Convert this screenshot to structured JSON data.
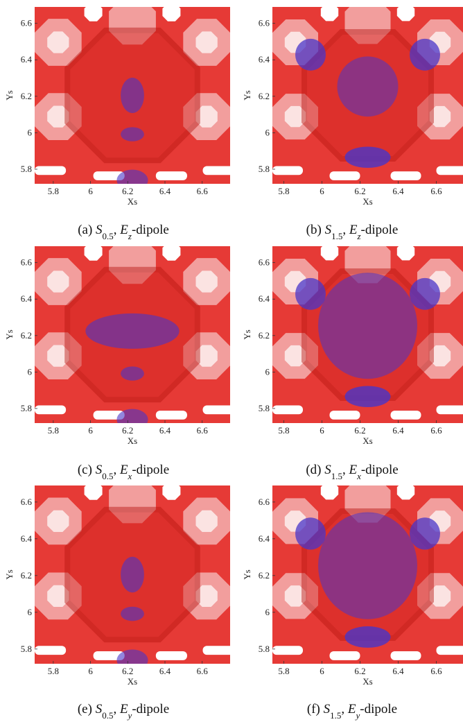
{
  "panels": [
    {
      "caption": [
        {
          "text": "(a) "
        },
        {
          "text": "S",
          "style": "italic"
        },
        {
          "text": "0.5",
          "style": "sub"
        },
        {
          "text": ", "
        },
        {
          "text": "E",
          "style": "italic"
        },
        {
          "text": "z",
          "style": "italic-sub"
        },
        {
          "text": "-dipole"
        }
      ],
      "xlabel": "Xs",
      "ylabel": "Ys",
      "xlim": [
        5.7,
        6.75
      ],
      "ylim": [
        5.72,
        6.69
      ],
      "xticks": [
        5.8,
        6,
        6.2,
        6.4,
        6.6
      ],
      "yticks": [
        5.8,
        6,
        6.2,
        6.4,
        6.6
      ]
    },
    {
      "caption": [
        {
          "text": "(b) "
        },
        {
          "text": "S",
          "style": "italic"
        },
        {
          "text": "1.5",
          "style": "sub"
        },
        {
          "text": ", "
        },
        {
          "text": "E",
          "style": "italic"
        },
        {
          "text": "z",
          "style": "italic-sub"
        },
        {
          "text": "-dipole"
        }
      ],
      "xlabel": "Xs",
      "ylabel": "Ys",
      "xlim": [
        5.74,
        6.74
      ],
      "ylim": [
        5.72,
        6.69
      ],
      "xticks": [
        5.8,
        6,
        6.2,
        6.4,
        6.6
      ],
      "yticks": [
        5.8,
        6,
        6.2,
        6.4,
        6.6
      ]
    },
    {
      "caption": [
        {
          "text": "(c) "
        },
        {
          "text": "S",
          "style": "italic"
        },
        {
          "text": "0.5",
          "style": "sub"
        },
        {
          "text": ", "
        },
        {
          "text": "E",
          "style": "italic"
        },
        {
          "text": "x",
          "style": "italic-sub"
        },
        {
          "text": "-dipole"
        }
      ],
      "xlabel": "Xs",
      "ylabel": "Ys",
      "xlim": [
        5.7,
        6.75
      ],
      "ylim": [
        5.72,
        6.69
      ],
      "xticks": [
        5.8,
        6,
        6.2,
        6.4,
        6.6
      ],
      "yticks": [
        5.8,
        6,
        6.2,
        6.4,
        6.6
      ]
    },
    {
      "caption": [
        {
          "text": "(d) "
        },
        {
          "text": "S",
          "style": "italic"
        },
        {
          "text": "1.5",
          "style": "sub"
        },
        {
          "text": ", "
        },
        {
          "text": "E",
          "style": "italic"
        },
        {
          "text": "x",
          "style": "italic-sub"
        },
        {
          "text": "-dipole"
        }
      ],
      "xlabel": "Xs",
      "ylabel": "Ys",
      "xlim": [
        5.74,
        6.74
      ],
      "ylim": [
        5.72,
        6.69
      ],
      "xticks": [
        5.8,
        6,
        6.2,
        6.4,
        6.6
      ],
      "yticks": [
        5.8,
        6,
        6.2,
        6.4,
        6.6
      ]
    },
    {
      "caption": [
        {
          "text": "(e) "
        },
        {
          "text": "S",
          "style": "italic"
        },
        {
          "text": "0.5",
          "style": "sub"
        },
        {
          "text": ", "
        },
        {
          "text": "E",
          "style": "italic"
        },
        {
          "text": "y",
          "style": "italic-sub"
        },
        {
          "text": "-dipole"
        }
      ],
      "xlabel": "Xs",
      "ylabel": "Ys",
      "xlim": [
        5.7,
        6.75
      ],
      "ylim": [
        5.72,
        6.69
      ],
      "xticks": [
        5.8,
        6,
        6.2,
        6.4,
        6.6
      ],
      "yticks": [
        5.8,
        6,
        6.2,
        6.4,
        6.6
      ]
    },
    {
      "caption": [
        {
          "text": "(f) "
        },
        {
          "text": "S",
          "style": "italic"
        },
        {
          "text": "1.5",
          "style": "sub"
        },
        {
          "text": ", "
        },
        {
          "text": "E",
          "style": "italic"
        },
        {
          "text": "y",
          "style": "italic-sub"
        },
        {
          "text": "-dipole"
        }
      ],
      "xlabel": "Xs",
      "ylabel": "Ys",
      "xlim": [
        5.74,
        6.74
      ],
      "ylim": [
        5.72,
        6.69
      ],
      "xticks": [
        5.8,
        6,
        6.2,
        6.4,
        6.6
      ],
      "yticks": [
        5.8,
        6,
        6.2,
        6.4,
        6.6
      ]
    }
  ]
}
